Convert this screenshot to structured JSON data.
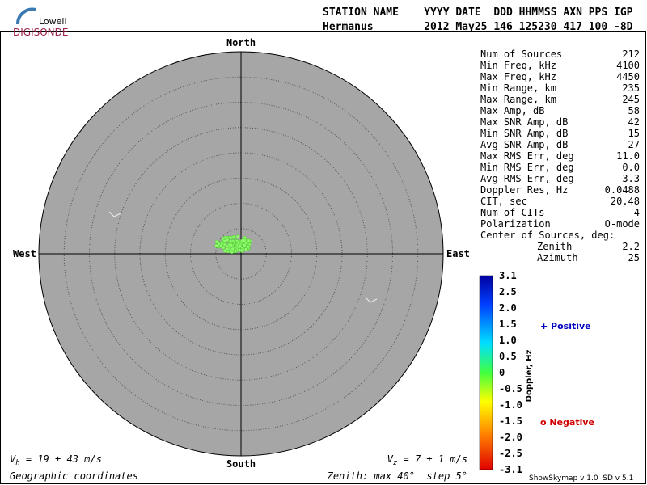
{
  "logo": {
    "top": "Lowell",
    "bottom": "DIGISONDE"
  },
  "header": {
    "columns": "STATION NAME    YYYY DATE  DDD HHMMSS AXN PPS IGP",
    "values": "Hermanus        2012 May25 146 125230 417 100 -8D"
  },
  "compass": {
    "north": "North",
    "south": "South",
    "west": "West",
    "east": "East"
  },
  "stats": [
    [
      "Num of Sources",
      "212"
    ],
    [
      "Min Freq, kHz",
      "4100"
    ],
    [
      "Max Freq, kHz",
      "4450"
    ],
    [
      "Min Range, km",
      "235"
    ],
    [
      "Max Range, km",
      "245"
    ],
    [
      "Max Amp, dB",
      "58"
    ],
    [
      "Max SNR Amp, dB",
      "42"
    ],
    [
      "Min SNR Amp, dB",
      "15"
    ],
    [
      "Avg SNR Amp, dB",
      "27"
    ],
    [
      "Max RMS Err, deg",
      "11.0"
    ],
    [
      "Min RMS Err, deg",
      "0.0"
    ],
    [
      "Avg RMS Err, deg",
      "3.3"
    ],
    [
      "Doppler Res, Hz",
      "0.0488"
    ],
    [
      "CIT, sec",
      "20.48"
    ],
    [
      "Num of CITs",
      "4"
    ],
    [
      "Polarization",
      "O-mode"
    ]
  ],
  "center": {
    "title": "Center of Sources, deg:",
    "rows": [
      [
        "Zenith",
        "2.2"
      ],
      [
        "Azimuth",
        "25"
      ]
    ]
  },
  "colorbar": {
    "title": "Doppler, Hz",
    "ticks": [
      "3.1",
      "2.5",
      "2.0",
      "1.5",
      "1.0",
      "0.5",
      "0",
      "-0.5",
      "-1.0",
      "-1.5",
      "-2.0",
      "-2.5",
      "-3.1"
    ]
  },
  "legend": {
    "positive": "+ Positive",
    "negative": "o Negative"
  },
  "footer": {
    "vh": {
      "symbol": "V",
      "subscript": "h",
      "text": " = 19 ± 43 m/s"
    },
    "vz": {
      "symbol": "V",
      "subscript": "z",
      "text": " = 7 ± 1 m/s"
    },
    "coords": "Geographic coordinates",
    "zenith": "Zenith: max 40°  step 5°",
    "version": "ShowSkymap v 1.0  SD v 5.1"
  }
}
